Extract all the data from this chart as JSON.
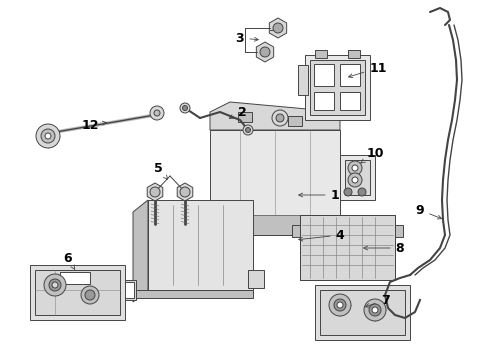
{
  "background_color": "#ffffff",
  "line_color": "#444444",
  "text_color": "#000000",
  "fig_width": 4.89,
  "fig_height": 3.6,
  "dpi": 100,
  "label_fontsize": 9,
  "arrow_lw": 0.6,
  "part_lw": 0.7,
  "fill_light": "#d8d8d8",
  "fill_mid": "#c0c0c0",
  "fill_white": "#ffffff"
}
